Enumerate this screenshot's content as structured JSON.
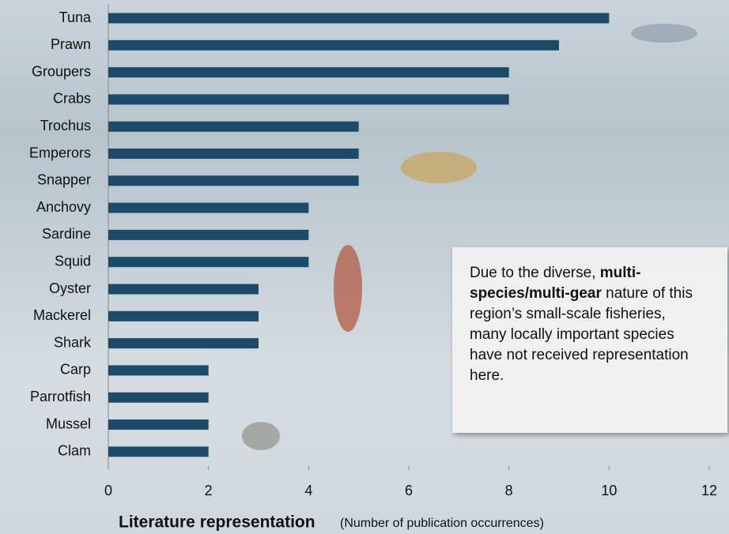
{
  "chart_data": {
    "type": "barh",
    "categories": [
      "Tuna",
      "Prawn",
      "Groupers",
      "Crabs",
      "Trochus",
      "Emperors",
      "Snapper",
      "Anchovy",
      "Sardine",
      "Squid",
      "Oyster",
      "Mackerel",
      "Shark",
      "Carp",
      "Parrotfish",
      "Mussel",
      "Clam"
    ],
    "values": [
      10,
      9,
      8,
      8,
      5,
      5,
      5,
      4,
      4,
      4,
      3,
      3,
      3,
      2,
      2,
      2,
      2
    ],
    "color": "#1e4a69",
    "xlim": [
      0,
      12
    ],
    "xticks": [
      0,
      2,
      4,
      6,
      8,
      10,
      12
    ],
    "x_label": "Literature representation",
    "x_label_note": "(Number of publication occurrences)",
    "annotation": [
      "Due to the diverse, ",
      "multi-species/multi-gear",
      " nature of this region’s small-scale fisheries, many locally important species have not received representation here."
    ]
  }
}
